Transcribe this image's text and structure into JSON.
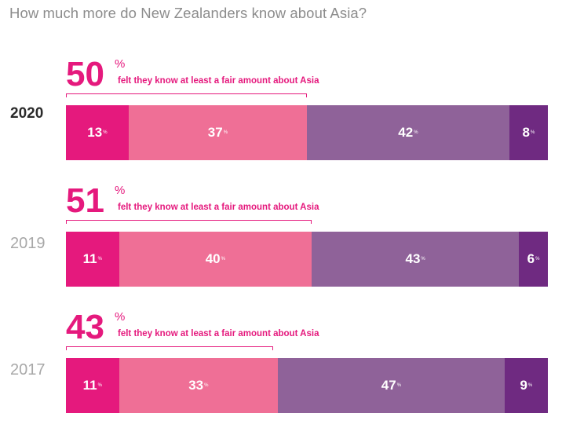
{
  "colors": {
    "accent": "#e5197d",
    "segments": [
      "#e5197d",
      "#ef6f96",
      "#8f6299",
      "#6f2a81"
    ]
  },
  "chart_data": {
    "type": "bar",
    "orientation": "horizontal-stacked-100",
    "title": "How much more do New Zealanders know about Asia?",
    "annotation_label": "felt they know at least a fair amount about Asia",
    "unit": "%",
    "groups": [
      {
        "year": "2020",
        "highlight": true,
        "summary_value": 50,
        "summary_text": "50",
        "values": [
          13,
          37,
          42,
          8
        ]
      },
      {
        "year": "2019",
        "highlight": false,
        "summary_value": 51,
        "summary_text": "51",
        "values": [
          11,
          40,
          43,
          6
        ]
      },
      {
        "year": "2017",
        "highlight": false,
        "summary_value": 43,
        "summary_text": "43",
        "values": [
          11,
          33,
          47,
          9
        ]
      }
    ]
  }
}
